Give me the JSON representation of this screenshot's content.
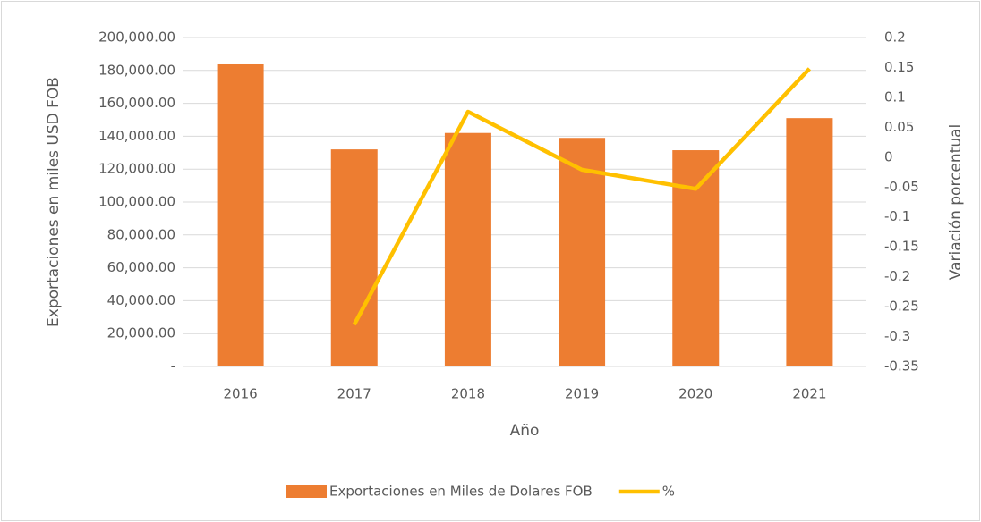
{
  "chart_data": {
    "type": "bar-line",
    "xlabel": "Año",
    "ylabel": "Exportaciones en miles USD FOB",
    "y2label": "Variación porcentual",
    "categories": [
      "2016",
      "2017",
      "2018",
      "2019",
      "2020",
      "2021"
    ],
    "series": [
      {
        "name": "Exportaciones en Miles de Dolares FOB",
        "type": "bar",
        "color": "#ed7d31",
        "axis": "y",
        "values": [
          183700,
          132000,
          142000,
          139000,
          131500,
          151000
        ]
      },
      {
        "name": "%",
        "type": "line",
        "color": "#ffc000",
        "axis": "y2",
        "values": [
          null,
          -0.28,
          0.076,
          -0.021,
          -0.053,
          0.148
        ]
      }
    ],
    "ylim": [
      0,
      200000
    ],
    "yticks": [
      {
        "value": 0,
        "label": "-"
      },
      {
        "value": 20000,
        "label": "20,000.00"
      },
      {
        "value": 40000,
        "label": "40,000.00"
      },
      {
        "value": 60000,
        "label": "60,000.00"
      },
      {
        "value": 80000,
        "label": "80,000.00"
      },
      {
        "value": 100000,
        "label": "100,000.00"
      },
      {
        "value": 120000,
        "label": "120,000.00"
      },
      {
        "value": 140000,
        "label": "140,000.00"
      },
      {
        "value": 160000,
        "label": "160,000.00"
      },
      {
        "value": 180000,
        "label": "180,000.00"
      },
      {
        "value": 200000,
        "label": "200,000.00"
      }
    ],
    "y2lim": [
      -0.35,
      0.2
    ],
    "y2ticks": [
      -0.35,
      -0.3,
      -0.25,
      -0.2,
      -0.15,
      -0.1,
      -0.05,
      0,
      0.05,
      0.1,
      0.15,
      0.2
    ],
    "grid": true,
    "legend": "bottom"
  }
}
